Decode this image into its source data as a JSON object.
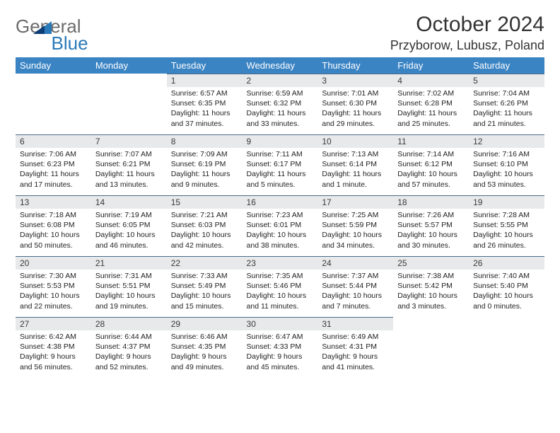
{
  "logo": {
    "part1": "General",
    "part2": "Blue"
  },
  "title": "October 2024",
  "location": "Przyborow, Lubusz, Poland",
  "columns": [
    "Sunday",
    "Monday",
    "Tuesday",
    "Wednesday",
    "Thursday",
    "Friday",
    "Saturday"
  ],
  "style": {
    "header_bg": "#3b84c4",
    "header_fg": "#ffffff",
    "daynum_bg": "#e8e9ea",
    "rule_color": "#4a6b8a",
    "body_fontsize": 10.5,
    "daynum_fontsize": 12,
    "header_fontsize": 13,
    "title_fontsize": 30,
    "location_fontsize": 18
  },
  "weeks": [
    [
      null,
      null,
      {
        "n": "1",
        "sr": "Sunrise: 6:57 AM",
        "ss": "Sunset: 6:35 PM",
        "dl": "Daylight: 11 hours and 37 minutes."
      },
      {
        "n": "2",
        "sr": "Sunrise: 6:59 AM",
        "ss": "Sunset: 6:32 PM",
        "dl": "Daylight: 11 hours and 33 minutes."
      },
      {
        "n": "3",
        "sr": "Sunrise: 7:01 AM",
        "ss": "Sunset: 6:30 PM",
        "dl": "Daylight: 11 hours and 29 minutes."
      },
      {
        "n": "4",
        "sr": "Sunrise: 7:02 AM",
        "ss": "Sunset: 6:28 PM",
        "dl": "Daylight: 11 hours and 25 minutes."
      },
      {
        "n": "5",
        "sr": "Sunrise: 7:04 AM",
        "ss": "Sunset: 6:26 PM",
        "dl": "Daylight: 11 hours and 21 minutes."
      }
    ],
    [
      {
        "n": "6",
        "sr": "Sunrise: 7:06 AM",
        "ss": "Sunset: 6:23 PM",
        "dl": "Daylight: 11 hours and 17 minutes."
      },
      {
        "n": "7",
        "sr": "Sunrise: 7:07 AM",
        "ss": "Sunset: 6:21 PM",
        "dl": "Daylight: 11 hours and 13 minutes."
      },
      {
        "n": "8",
        "sr": "Sunrise: 7:09 AM",
        "ss": "Sunset: 6:19 PM",
        "dl": "Daylight: 11 hours and 9 minutes."
      },
      {
        "n": "9",
        "sr": "Sunrise: 7:11 AM",
        "ss": "Sunset: 6:17 PM",
        "dl": "Daylight: 11 hours and 5 minutes."
      },
      {
        "n": "10",
        "sr": "Sunrise: 7:13 AM",
        "ss": "Sunset: 6:14 PM",
        "dl": "Daylight: 11 hours and 1 minute."
      },
      {
        "n": "11",
        "sr": "Sunrise: 7:14 AM",
        "ss": "Sunset: 6:12 PM",
        "dl": "Daylight: 10 hours and 57 minutes."
      },
      {
        "n": "12",
        "sr": "Sunrise: 7:16 AM",
        "ss": "Sunset: 6:10 PM",
        "dl": "Daylight: 10 hours and 53 minutes."
      }
    ],
    [
      {
        "n": "13",
        "sr": "Sunrise: 7:18 AM",
        "ss": "Sunset: 6:08 PM",
        "dl": "Daylight: 10 hours and 50 minutes."
      },
      {
        "n": "14",
        "sr": "Sunrise: 7:19 AM",
        "ss": "Sunset: 6:05 PM",
        "dl": "Daylight: 10 hours and 46 minutes."
      },
      {
        "n": "15",
        "sr": "Sunrise: 7:21 AM",
        "ss": "Sunset: 6:03 PM",
        "dl": "Daylight: 10 hours and 42 minutes."
      },
      {
        "n": "16",
        "sr": "Sunrise: 7:23 AM",
        "ss": "Sunset: 6:01 PM",
        "dl": "Daylight: 10 hours and 38 minutes."
      },
      {
        "n": "17",
        "sr": "Sunrise: 7:25 AM",
        "ss": "Sunset: 5:59 PM",
        "dl": "Daylight: 10 hours and 34 minutes."
      },
      {
        "n": "18",
        "sr": "Sunrise: 7:26 AM",
        "ss": "Sunset: 5:57 PM",
        "dl": "Daylight: 10 hours and 30 minutes."
      },
      {
        "n": "19",
        "sr": "Sunrise: 7:28 AM",
        "ss": "Sunset: 5:55 PM",
        "dl": "Daylight: 10 hours and 26 minutes."
      }
    ],
    [
      {
        "n": "20",
        "sr": "Sunrise: 7:30 AM",
        "ss": "Sunset: 5:53 PM",
        "dl": "Daylight: 10 hours and 22 minutes."
      },
      {
        "n": "21",
        "sr": "Sunrise: 7:31 AM",
        "ss": "Sunset: 5:51 PM",
        "dl": "Daylight: 10 hours and 19 minutes."
      },
      {
        "n": "22",
        "sr": "Sunrise: 7:33 AM",
        "ss": "Sunset: 5:49 PM",
        "dl": "Daylight: 10 hours and 15 minutes."
      },
      {
        "n": "23",
        "sr": "Sunrise: 7:35 AM",
        "ss": "Sunset: 5:46 PM",
        "dl": "Daylight: 10 hours and 11 minutes."
      },
      {
        "n": "24",
        "sr": "Sunrise: 7:37 AM",
        "ss": "Sunset: 5:44 PM",
        "dl": "Daylight: 10 hours and 7 minutes."
      },
      {
        "n": "25",
        "sr": "Sunrise: 7:38 AM",
        "ss": "Sunset: 5:42 PM",
        "dl": "Daylight: 10 hours and 3 minutes."
      },
      {
        "n": "26",
        "sr": "Sunrise: 7:40 AM",
        "ss": "Sunset: 5:40 PM",
        "dl": "Daylight: 10 hours and 0 minutes."
      }
    ],
    [
      {
        "n": "27",
        "sr": "Sunrise: 6:42 AM",
        "ss": "Sunset: 4:38 PM",
        "dl": "Daylight: 9 hours and 56 minutes."
      },
      {
        "n": "28",
        "sr": "Sunrise: 6:44 AM",
        "ss": "Sunset: 4:37 PM",
        "dl": "Daylight: 9 hours and 52 minutes."
      },
      {
        "n": "29",
        "sr": "Sunrise: 6:46 AM",
        "ss": "Sunset: 4:35 PM",
        "dl": "Daylight: 9 hours and 49 minutes."
      },
      {
        "n": "30",
        "sr": "Sunrise: 6:47 AM",
        "ss": "Sunset: 4:33 PM",
        "dl": "Daylight: 9 hours and 45 minutes."
      },
      {
        "n": "31",
        "sr": "Sunrise: 6:49 AM",
        "ss": "Sunset: 4:31 PM",
        "dl": "Daylight: 9 hours and 41 minutes."
      },
      null,
      null
    ]
  ]
}
